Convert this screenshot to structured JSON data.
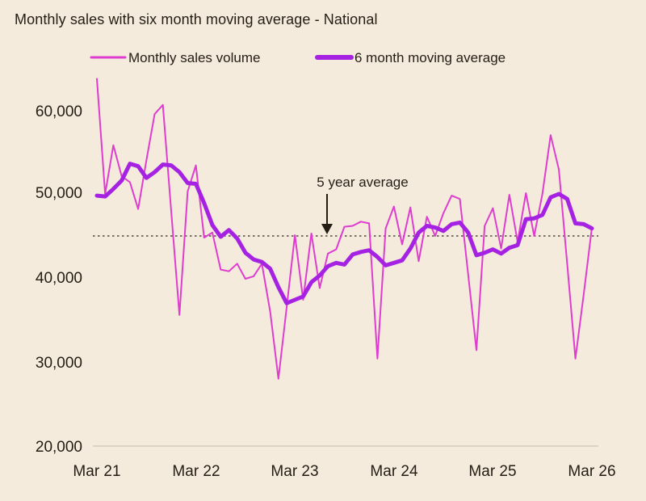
{
  "title": "Monthly sales with six month moving average - National",
  "legend": {
    "items": [
      {
        "label": "Monthly sales volume",
        "color": "#de3dd0"
      },
      {
        "label": "6 month moving average",
        "color": "#a522e3"
      }
    ]
  },
  "annotation": {
    "label": "5 year average"
  },
  "y_axis": {
    "tick_labels": [
      "60,000",
      "50,000",
      "40,000",
      "30,000",
      "20,000"
    ]
  },
  "x_axis": {
    "tick_labels": [
      "Mar 21",
      "Mar 22",
      "Mar 23",
      "Mar 24",
      "Mar 25",
      "Mar 26"
    ]
  },
  "chart_data": {
    "type": "line",
    "title": "Monthly sales with six month moving average - National",
    "x_unit": "month",
    "x_range": [
      "2021-03",
      "2026-03"
    ],
    "x_tick_labels": [
      "Mar 21",
      "Mar 22",
      "Mar 23",
      "Mar 24",
      "Mar 25",
      "Mar 26"
    ],
    "y_ticks": [
      20000,
      30000,
      40000,
      50000,
      60000
    ],
    "ylim": [
      20000,
      65000
    ],
    "grid": false,
    "legend_position": "top",
    "five_year_average": 45000,
    "months": [
      "2021-03",
      "2021-04",
      "2021-05",
      "2021-06",
      "2021-07",
      "2021-08",
      "2021-09",
      "2021-10",
      "2021-11",
      "2021-12",
      "2022-01",
      "2022-02",
      "2022-03",
      "2022-04",
      "2022-05",
      "2022-06",
      "2022-07",
      "2022-08",
      "2022-09",
      "2022-10",
      "2022-11",
      "2022-12",
      "2023-01",
      "2023-02",
      "2023-03",
      "2023-04",
      "2023-05",
      "2023-06",
      "2023-07",
      "2023-08",
      "2023-09",
      "2023-10",
      "2023-11",
      "2023-12",
      "2024-01",
      "2024-02",
      "2024-03",
      "2024-04",
      "2024-05",
      "2024-06",
      "2024-07",
      "2024-08",
      "2024-09",
      "2024-10",
      "2024-11",
      "2024-12",
      "2025-01",
      "2025-02",
      "2025-03",
      "2025-04",
      "2025-05",
      "2025-06",
      "2025-07",
      "2025-08",
      "2025-09",
      "2025-10",
      "2025-11",
      "2025-12",
      "2026-01",
      "2026-02",
      "2026-03"
    ],
    "series": [
      {
        "name": "Monthly sales volume",
        "color": "#de3dd0",
        "width": 2,
        "values": [
          63700,
          50000,
          55800,
          52100,
          51400,
          48200,
          54000,
          59500,
          60600,
          48100,
          35600,
          50300,
          53400,
          44800,
          45400,
          41000,
          40800,
          41700,
          39900,
          40200,
          41700,
          36000,
          28000,
          36500,
          45100,
          37400,
          45300,
          38800,
          42900,
          43400,
          46100,
          46200,
          46700,
          46500,
          30400,
          45900,
          48500,
          44000,
          48400,
          42000,
          47300,
          45000,
          47700,
          49800,
          49400,
          40400,
          31400,
          46200,
          48300,
          43500,
          49900,
          44300,
          50100,
          45000,
          50000,
          57000,
          52900,
          41700,
          30400,
          38000,
          46000
        ]
      },
      {
        "name": "6 month moving average",
        "color": "#a522e3",
        "width": 5,
        "values": [
          49800,
          49700,
          50600,
          51600,
          53600,
          53300,
          51900,
          52600,
          53500,
          53400,
          52600,
          51300,
          51200,
          48900,
          46300,
          44900,
          45700,
          44700,
          43000,
          42200,
          41900,
          41100,
          38900,
          37000,
          37400,
          37800,
          39500,
          40300,
          41400,
          41800,
          41600,
          42800,
          43100,
          43300,
          42500,
          41500,
          41800,
          42100,
          43500,
          45400,
          46200,
          46000,
          45600,
          46400,
          46600,
          45400,
          42700,
          43000,
          43400,
          42900,
          43600,
          43900,
          47000,
          47100,
          47500,
          49600,
          50000,
          49400,
          46500,
          46400,
          45900
        ]
      }
    ]
  }
}
